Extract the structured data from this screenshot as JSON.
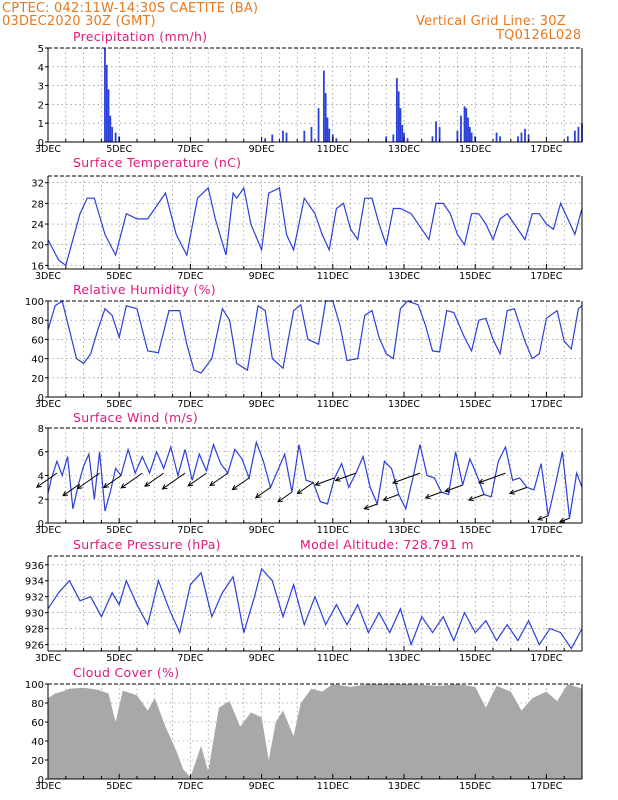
{
  "header": {
    "line1": "CPTEC:   042:11W-14:30S   CAETITE (BA)",
    "line2": "03DEC2020 30Z (GMT)",
    "right1": "Vertical Grid Line: 30Z",
    "right2": "TQ0126L028"
  },
  "colors": {
    "header": "#e8781e",
    "title": "#e0197d",
    "line": "#2b3fd9",
    "bars": "#2b3fd9",
    "cloud": "#a8a8a8",
    "arrow": "#000000"
  },
  "x_ticks": [
    "3DEC",
    "5DEC",
    "7DEC",
    "9DEC",
    "11DEC",
    "13DEC",
    "15DEC",
    "17DEC"
  ],
  "chart_data": [
    {
      "type": "bar",
      "title": "Precipitation (mm/h)",
      "x_range_days": [
        3,
        18
      ],
      "ylim": [
        0,
        5
      ],
      "yticks": [
        0,
        1,
        2,
        3,
        4,
        5
      ],
      "x": [
        4.6,
        4.65,
        4.7,
        4.75,
        4.8,
        4.9,
        5.0,
        9.1,
        9.3,
        9.6,
        9.7,
        10.2,
        10.4,
        10.6,
        10.75,
        10.8,
        10.85,
        10.9,
        11.0,
        11.1,
        12.5,
        12.7,
        12.8,
        12.85,
        12.9,
        12.95,
        13.0,
        13.1,
        13.8,
        13.9,
        14.0,
        14.5,
        14.6,
        14.7,
        14.75,
        14.8,
        14.85,
        14.9,
        15.0,
        15.6,
        15.7,
        16.2,
        16.3,
        16.4,
        16.5,
        17.6,
        17.8,
        17.9,
        18.0
      ],
      "values": [
        5.0,
        4.1,
        2.8,
        1.4,
        0.8,
        0.5,
        0.3,
        0.2,
        0.4,
        0.6,
        0.5,
        0.6,
        0.8,
        1.8,
        3.8,
        2.6,
        1.3,
        0.7,
        0.4,
        0.2,
        0.3,
        0.4,
        3.4,
        2.7,
        1.8,
        0.9,
        0.5,
        0.2,
        0.3,
        1.1,
        0.8,
        0.6,
        1.4,
        1.9,
        1.8,
        1.3,
        0.8,
        0.5,
        0.3,
        0.5,
        0.3,
        0.3,
        0.5,
        0.7,
        0.4,
        0.3,
        0.6,
        0.8,
        1.0
      ]
    },
    {
      "type": "line",
      "title": "Surface Temperature (nC)",
      "x_range_days": [
        3,
        18
      ],
      "ylim": [
        15.3,
        33.3
      ],
      "yticks": [
        16,
        20,
        24,
        28,
        32
      ],
      "x": [
        3.0,
        3.15,
        3.3,
        3.5,
        3.9,
        4.1,
        4.3,
        4.6,
        4.9,
        5.2,
        5.5,
        5.8,
        6.1,
        6.3,
        6.6,
        6.9,
        7.2,
        7.5,
        7.7,
        8.0,
        8.2,
        8.3,
        8.5,
        8.7,
        9.0,
        9.2,
        9.5,
        9.7,
        9.9,
        10.2,
        10.5,
        10.7,
        10.9,
        11.1,
        11.3,
        11.5,
        11.7,
        11.9,
        12.1,
        12.3,
        12.5,
        12.7,
        12.9,
        13.2,
        13.5,
        13.7,
        13.9,
        14.1,
        14.3,
        14.5,
        14.7,
        14.9,
        15.1,
        15.3,
        15.5,
        15.7,
        15.9,
        16.1,
        16.4,
        16.6,
        16.8,
        17.0,
        17.2,
        17.4,
        17.6,
        17.8,
        18.0
      ],
      "values": [
        21,
        19,
        17,
        16,
        26,
        29,
        29,
        22,
        18,
        26,
        25,
        25,
        28,
        30,
        22,
        18,
        29,
        31,
        25,
        18,
        30,
        29,
        31,
        24,
        19,
        30,
        31,
        22,
        19,
        29,
        26,
        22,
        19,
        27,
        28,
        23,
        21,
        29,
        29,
        24,
        20,
        27,
        27,
        26,
        23,
        21,
        28,
        28,
        26,
        22,
        20,
        26,
        26,
        24,
        21,
        25,
        26,
        24,
        21,
        26,
        26,
        24,
        23,
        28,
        25,
        22,
        27
      ]
    },
    {
      "type": "line",
      "title": "Relative Humidity (%)",
      "x_range_days": [
        3,
        18
      ],
      "ylim": [
        0,
        100
      ],
      "yticks": [
        0,
        20,
        40,
        60,
        80,
        100
      ],
      "x": [
        3.0,
        3.2,
        3.4,
        3.6,
        3.8,
        4.0,
        4.2,
        4.4,
        4.6,
        4.8,
        5.0,
        5.2,
        5.5,
        5.8,
        6.1,
        6.4,
        6.7,
        6.9,
        7.1,
        7.3,
        7.6,
        7.9,
        8.1,
        8.3,
        8.6,
        8.9,
        9.1,
        9.3,
        9.6,
        9.9,
        10.1,
        10.3,
        10.6,
        10.8,
        11.0,
        11.2,
        11.4,
        11.7,
        11.9,
        12.1,
        12.3,
        12.5,
        12.7,
        12.9,
        13.1,
        13.4,
        13.6,
        13.8,
        14.0,
        14.2,
        14.4,
        14.7,
        14.9,
        15.1,
        15.3,
        15.5,
        15.7,
        15.9,
        16.1,
        16.4,
        16.6,
        16.8,
        17.0,
        17.3,
        17.5,
        17.7,
        17.9,
        18.0
      ],
      "values": [
        70,
        95,
        100,
        70,
        40,
        35,
        45,
        70,
        92,
        85,
        62,
        95,
        92,
        48,
        46,
        90,
        90,
        55,
        28,
        25,
        40,
        92,
        80,
        35,
        28,
        95,
        90,
        40,
        30,
        90,
        96,
        60,
        55,
        100,
        100,
        75,
        38,
        40,
        85,
        90,
        62,
        45,
        40,
        92,
        100,
        96,
        75,
        48,
        47,
        90,
        88,
        62,
        48,
        80,
        82,
        60,
        45,
        90,
        92,
        58,
        40,
        45,
        82,
        90,
        58,
        50,
        92,
        95
      ]
    },
    {
      "type": "line",
      "title": "Surface Wind (m/s)",
      "x_range_days": [
        3,
        18
      ],
      "ylim": [
        0,
        8
      ],
      "yticks": [
        0,
        2,
        4,
        6,
        8
      ],
      "x": [
        3.0,
        3.1,
        3.25,
        3.4,
        3.55,
        3.7,
        3.85,
        4.0,
        4.15,
        4.3,
        4.45,
        4.6,
        4.75,
        4.9,
        5.05,
        5.25,
        5.45,
        5.65,
        5.85,
        6.05,
        6.25,
        6.45,
        6.65,
        6.85,
        7.05,
        7.25,
        7.45,
        7.65,
        7.85,
        8.05,
        8.25,
        8.45,
        8.65,
        8.85,
        9.05,
        9.25,
        9.45,
        9.65,
        9.85,
        10.05,
        10.25,
        10.45,
        10.65,
        10.85,
        11.05,
        11.25,
        11.45,
        11.65,
        11.85,
        12.05,
        12.25,
        12.45,
        12.65,
        12.85,
        13.05,
        13.25,
        13.45,
        13.65,
        13.85,
        14.05,
        14.25,
        14.45,
        14.65,
        14.85,
        15.05,
        15.25,
        15.45,
        15.65,
        15.85,
        16.05,
        16.25,
        16.45,
        16.65,
        16.85,
        17.05,
        17.25,
        17.45,
        17.65,
        17.85,
        18.0
      ],
      "values": [
        2.5,
        3.8,
        5.2,
        4.0,
        5.6,
        1.2,
        3.2,
        4.8,
        5.8,
        2.0,
        6.0,
        1.0,
        2.6,
        4.6,
        4.0,
        6.2,
        4.2,
        5.6,
        4.2,
        6.0,
        4.6,
        6.4,
        4.0,
        6.2,
        3.6,
        5.8,
        4.4,
        6.6,
        5.0,
        4.2,
        6.2,
        5.4,
        3.8,
        6.8,
        5.2,
        3.0,
        4.4,
        5.8,
        2.6,
        6.6,
        3.6,
        3.4,
        1.8,
        1.6,
        3.8,
        5.0,
        3.0,
        4.2,
        5.6,
        3.0,
        1.6,
        5.2,
        4.6,
        2.4,
        1.2,
        3.8,
        6.6,
        4.0,
        3.8,
        2.6,
        2.4,
        6.0,
        3.2,
        5.4,
        4.0,
        2.4,
        2.2,
        5.2,
        6.4,
        3.6,
        3.8,
        3.0,
        2.8,
        5.0,
        0.6,
        3.2,
        6.0,
        0.4,
        4.2,
        3.0
      ]
    },
    {
      "type": "line",
      "title": "Surface Pressure (hPa)",
      "annotation": "Model Altitude: 728.791 m",
      "x_range_days": [
        3,
        18
      ],
      "ylim": [
        925.2,
        937.1
      ],
      "yticks": [
        926,
        928,
        930,
        932,
        934,
        936
      ],
      "x": [
        3.0,
        3.3,
        3.6,
        3.9,
        4.2,
        4.5,
        4.8,
        5.0,
        5.2,
        5.5,
        5.8,
        6.1,
        6.4,
        6.7,
        7.0,
        7.3,
        7.6,
        7.9,
        8.2,
        8.5,
        8.8,
        9.0,
        9.3,
        9.6,
        9.9,
        10.2,
        10.5,
        10.8,
        11.1,
        11.4,
        11.7,
        12.0,
        12.3,
        12.6,
        12.9,
        13.2,
        13.5,
        13.8,
        14.1,
        14.4,
        14.7,
        15.0,
        15.3,
        15.6,
        15.9,
        16.2,
        16.5,
        16.8,
        17.1,
        17.4,
        17.7,
        18.0
      ],
      "values": [
        930.5,
        932.5,
        934,
        931.5,
        932,
        929.5,
        932.5,
        931,
        934,
        931,
        928.5,
        934,
        930.5,
        927.5,
        933.5,
        935,
        929.5,
        932.5,
        934.5,
        927.5,
        932,
        935.5,
        934,
        929.5,
        933.5,
        928.5,
        932,
        928.5,
        931,
        928.5,
        931,
        927.5,
        930,
        927.5,
        930.5,
        926,
        929.5,
        927.5,
        929.5,
        926.5,
        930,
        927.5,
        929,
        926.5,
        928.5,
        926.5,
        929,
        926,
        928,
        927.5,
        925.5,
        928
      ]
    },
    {
      "type": "area",
      "title": "Cloud Cover (%)",
      "x_range_days": [
        3,
        18
      ],
      "ylim": [
        0,
        100
      ],
      "yticks": [
        0,
        20,
        40,
        60,
        80,
        100
      ],
      "x": [
        3.0,
        3.2,
        3.4,
        3.6,
        4.0,
        4.4,
        4.7,
        4.9,
        5.1,
        5.5,
        5.8,
        6.0,
        6.3,
        6.6,
        6.8,
        7.0,
        7.3,
        7.5,
        7.8,
        8.1,
        8.4,
        8.7,
        9.0,
        9.2,
        9.4,
        9.6,
        9.9,
        10.1,
        10.4,
        10.7,
        11.0,
        11.5,
        12.0,
        13.0,
        14.0,
        14.5,
        15.0,
        15.3,
        15.6,
        16.0,
        16.3,
        16.6,
        17.0,
        17.3,
        17.6,
        18.0
      ],
      "values": [
        85,
        90,
        92,
        95,
        96,
        94,
        90,
        60,
        93,
        88,
        72,
        85,
        55,
        30,
        10,
        2,
        35,
        8,
        75,
        82,
        55,
        70,
        65,
        20,
        60,
        72,
        45,
        80,
        95,
        92,
        100,
        97,
        100,
        100,
        98,
        100,
        97,
        75,
        98,
        92,
        72,
        85,
        92,
        82,
        100,
        95
      ]
    }
  ]
}
